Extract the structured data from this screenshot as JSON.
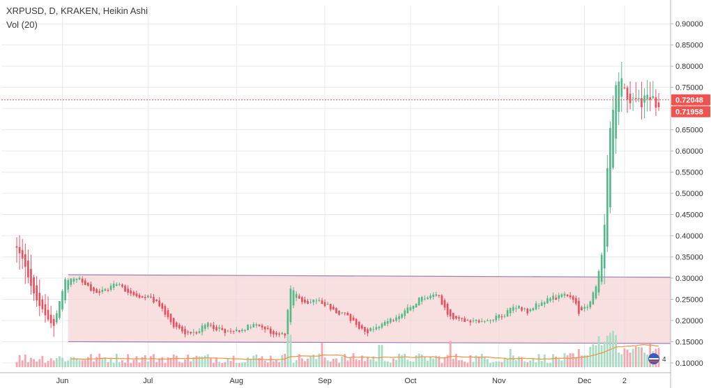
{
  "legend": {
    "title": "XRPUSD, D, KRAKEN, Heikin Ashi",
    "volume": "Vol (20)"
  },
  "colors": {
    "up": "#53b987",
    "down": "#eb4d5c",
    "vol_up": "#a9dcc3",
    "vol_down": "#f5a6ae",
    "vol_ma": "#f0913a",
    "grid": "#e6e9ee",
    "channel_fill": "#f6d6d6",
    "channel_line": "#9b7bb8",
    "last_price_line": "#ef5350",
    "axis_text": "#333333"
  },
  "chart_data": {
    "type": "candlestick",
    "symbol": "XRPUSD",
    "interval": "D",
    "exchange": "KRAKEN",
    "style": "Heikin Ashi",
    "y_axis": {
      "ylim": [
        0.09,
        0.92
      ],
      "ticks": [
        "0.90000",
        "0.85000",
        "0.80000",
        "0.75000",
        "0.70000",
        "0.65000",
        "0.60000",
        "0.55000",
        "0.50000",
        "0.45000",
        "0.40000",
        "0.35000",
        "0.30000",
        "0.25000",
        "0.20000",
        "0.15000",
        "0.10000"
      ],
      "tick_values": [
        0.9,
        0.85,
        0.8,
        0.75,
        0.7,
        0.65,
        0.6,
        0.55,
        0.5,
        0.45,
        0.4,
        0.35,
        0.3,
        0.25,
        0.2,
        0.15,
        0.1
      ],
      "side": "right"
    },
    "x_axis": {
      "labels": [
        "Jun",
        "Jul",
        "Aug",
        "Sep",
        "Oct",
        "Nov",
        "Dec",
        "2"
      ],
      "label_day_index": [
        16,
        46,
        77,
        108,
        138,
        169,
        199,
        213
      ]
    },
    "price_labels": [
      "0.72048",
      "0.71958"
    ],
    "last_price": 0.72048,
    "channel": {
      "upper": [
        0.308,
        0.302
      ],
      "lower": [
        0.15,
        0.146
      ],
      "start_day": 18,
      "end_day": 223
    },
    "anchors": [
      [
        0,
        0.37
      ],
      [
        3,
        0.33
      ],
      [
        6,
        0.26
      ],
      [
        10,
        0.21
      ],
      [
        13,
        0.19
      ],
      [
        16,
        0.27
      ],
      [
        17,
        0.3
      ],
      [
        22,
        0.295
      ],
      [
        27,
        0.265
      ],
      [
        31,
        0.27
      ],
      [
        35,
        0.29
      ],
      [
        39,
        0.265
      ],
      [
        43,
        0.26
      ],
      [
        47,
        0.255
      ],
      [
        51,
        0.225
      ],
      [
        55,
        0.19
      ],
      [
        59,
        0.17
      ],
      [
        63,
        0.175
      ],
      [
        67,
        0.19
      ],
      [
        71,
        0.18
      ],
      [
        75,
        0.17
      ],
      [
        79,
        0.18
      ],
      [
        83,
        0.19
      ],
      [
        87,
        0.18
      ],
      [
        91,
        0.165
      ],
      [
        94,
        0.17
      ],
      [
        96,
        0.28
      ],
      [
        100,
        0.24
      ],
      [
        104,
        0.25
      ],
      [
        108,
        0.24
      ],
      [
        112,
        0.22
      ],
      [
        116,
        0.21
      ],
      [
        119,
        0.19
      ],
      [
        123,
        0.175
      ],
      [
        127,
        0.19
      ],
      [
        131,
        0.2
      ],
      [
        135,
        0.215
      ],
      [
        139,
        0.235
      ],
      [
        141,
        0.25
      ],
      [
        145,
        0.26
      ],
      [
        148,
        0.255
      ],
      [
        151,
        0.21
      ],
      [
        155,
        0.205
      ],
      [
        159,
        0.2
      ],
      [
        163,
        0.195
      ],
      [
        167,
        0.205
      ],
      [
        171,
        0.215
      ],
      [
        175,
        0.235
      ],
      [
        179,
        0.22
      ],
      [
        183,
        0.24
      ],
      [
        187,
        0.25
      ],
      [
        191,
        0.26
      ],
      [
        195,
        0.25
      ],
      [
        197,
        0.22
      ],
      [
        200,
        0.235
      ],
      [
        203,
        0.28
      ],
      [
        205,
        0.36
      ],
      [
        206,
        0.44
      ],
      [
        207,
        0.55
      ],
      [
        208,
        0.66
      ],
      [
        210,
        0.74
      ],
      [
        212,
        0.77
      ],
      [
        215,
        0.72
      ],
      [
        216,
        0.72
      ]
    ],
    "volume_scale_max": 100
  }
}
